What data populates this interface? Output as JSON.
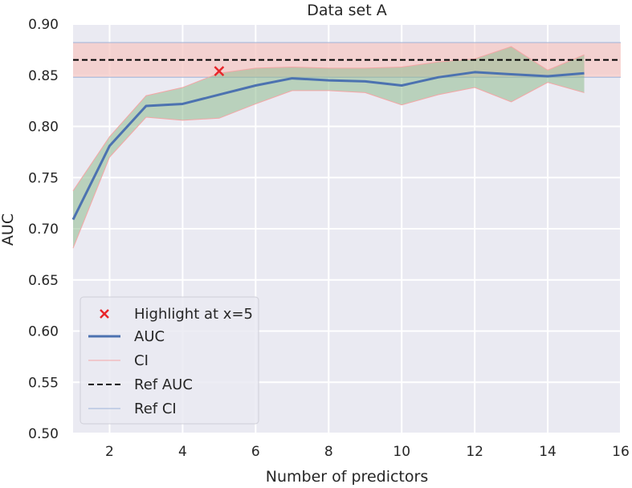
{
  "chart_data": {
    "type": "line",
    "title": "Data set A",
    "xlabel": "Number of predictors",
    "ylabel": "AUC",
    "xlim": [
      1,
      16
    ],
    "ylim": [
      0.5,
      0.9
    ],
    "xticks": [
      2,
      4,
      6,
      8,
      10,
      12,
      14,
      16
    ],
    "yticks": [
      0.5,
      0.55,
      0.6,
      0.65,
      0.7,
      0.75,
      0.8,
      0.85,
      0.9
    ],
    "ytick_labels": [
      "0.50",
      "0.55",
      "0.60",
      "0.65",
      "0.70",
      "0.75",
      "0.80",
      "0.85",
      "0.90"
    ],
    "grid": true,
    "legend_position": "lower-left",
    "x": [
      1,
      2,
      3,
      4,
      5,
      6,
      7,
      8,
      9,
      10,
      11,
      12,
      13,
      14,
      15
    ],
    "series": [
      {
        "name": "AUC",
        "color": "#4c72b0",
        "values": [
          0.709,
          0.781,
          0.82,
          0.822,
          0.831,
          0.84,
          0.847,
          0.845,
          0.844,
          0.84,
          0.848,
          0.853,
          0.851,
          0.849,
          0.852
        ],
        "ci_lower": [
          0.681,
          0.77,
          0.809,
          0.806,
          0.808,
          0.822,
          0.835,
          0.835,
          0.833,
          0.821,
          0.831,
          0.838,
          0.824,
          0.843,
          0.833
        ],
        "ci_upper": [
          0.737,
          0.79,
          0.83,
          0.838,
          0.852,
          0.857,
          0.858,
          0.857,
          0.857,
          0.858,
          0.863,
          0.866,
          0.878,
          0.855,
          0.87
        ]
      }
    ],
    "ci_legend_label": "CI",
    "ci_line_color": "#f4a6a6",
    "ci_fill_color": "#8fbc8f",
    "reference": {
      "auc_label": "Ref AUC",
      "auc": 0.865,
      "auc_color": "#000000",
      "ci_label": "Ref CI",
      "ci_lower": 0.848,
      "ci_upper": 0.882,
      "ci_line_color": "#9fb4d9",
      "ci_fill_color": "#f6c8c4"
    },
    "highlight": {
      "label": "Highlight at x=5",
      "x": 5,
      "y": 0.854,
      "color": "#e8262b"
    },
    "background_color": "#eaeaf2"
  }
}
